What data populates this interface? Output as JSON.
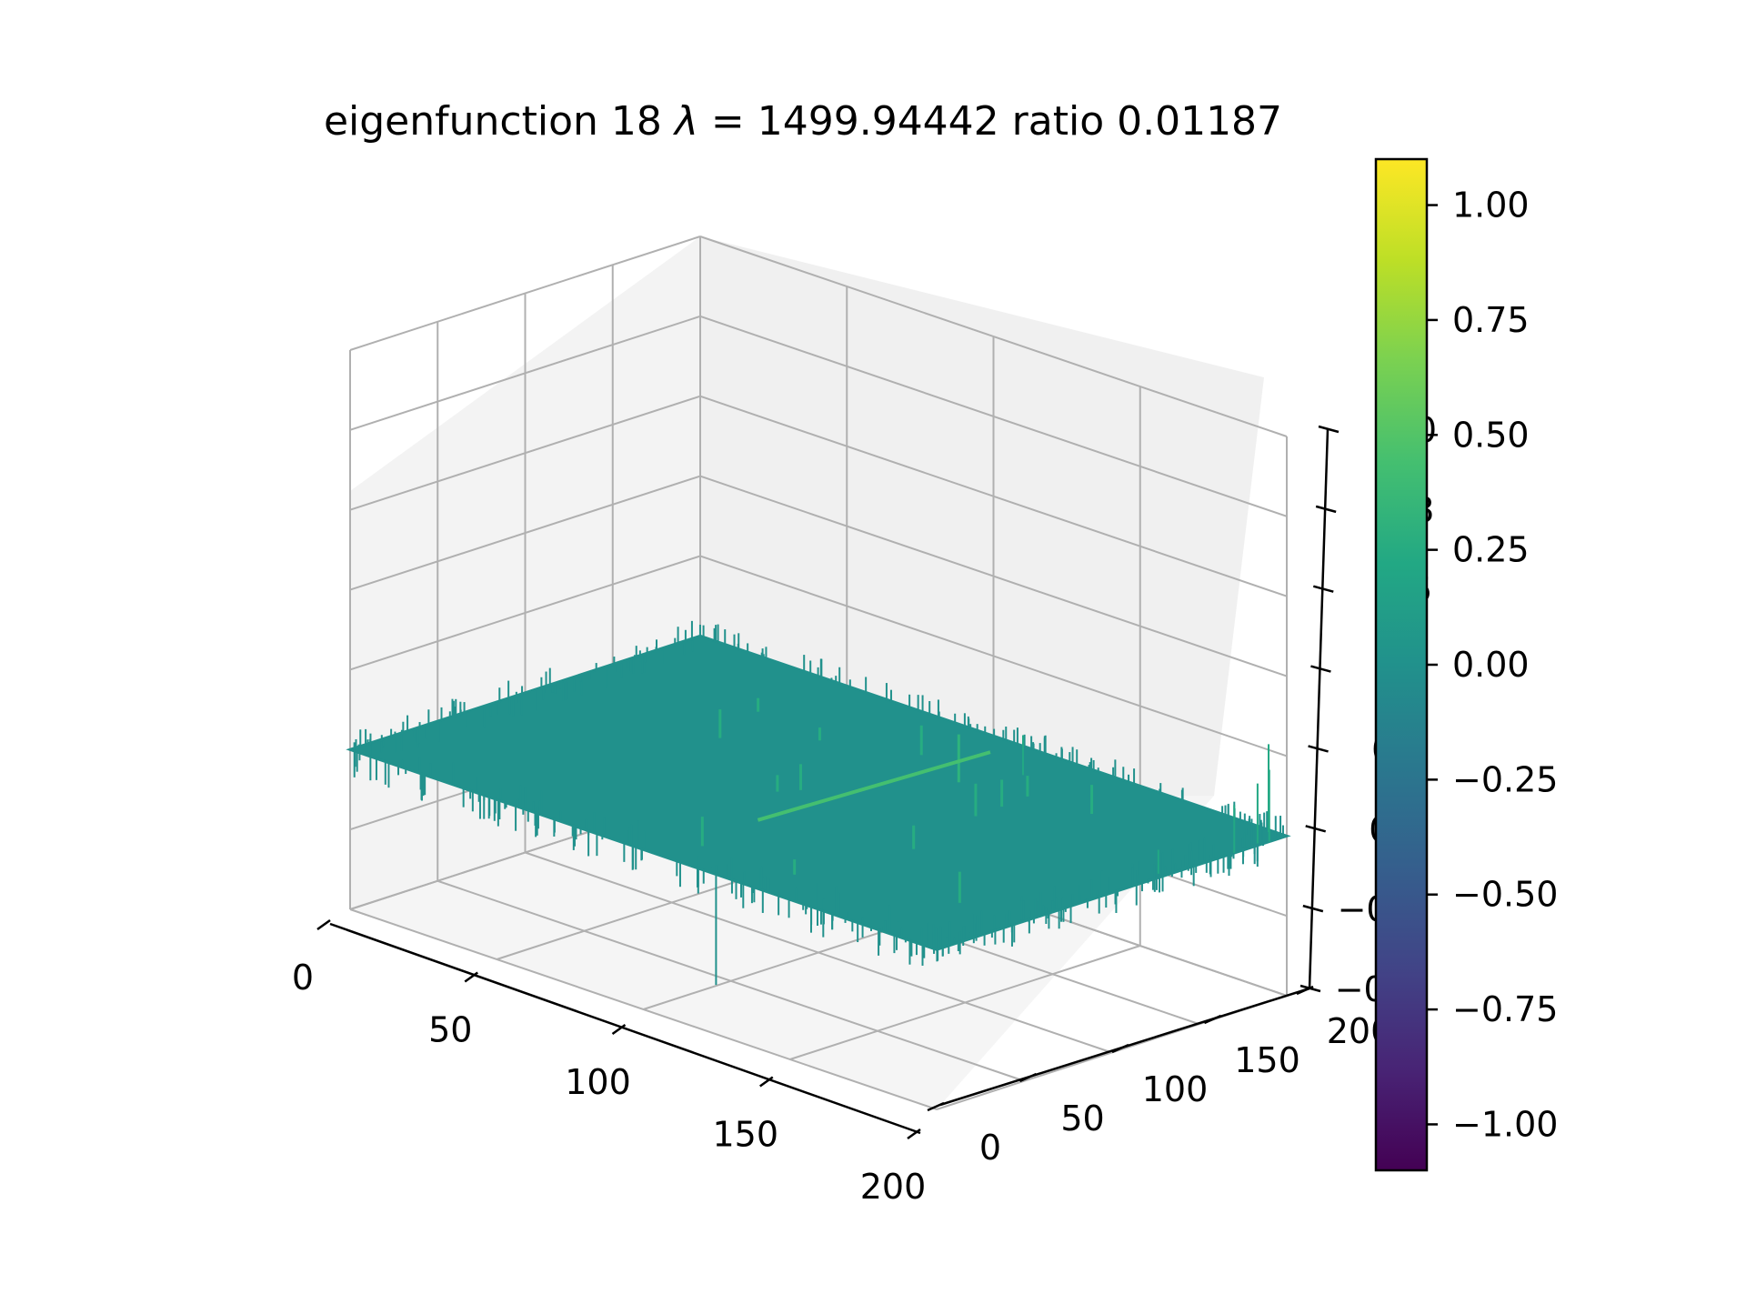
{
  "chart_data": {
    "type": "surface3d",
    "title": "eigenfunction 18  λ = 1499.94442 ratio 0.01187",
    "title_parts": {
      "prefix": "eigenfunction 18  ",
      "lambda_symbol": "λ",
      "equals": " = ",
      "lambda_value": "1499.94442",
      "suffix": " ratio 0.01187"
    },
    "colormap": "viridis",
    "x_axis": {
      "range": [
        0,
        200
      ],
      "ticks": [
        0,
        50,
        100,
        150,
        200
      ],
      "tick_labels": [
        "0",
        "50",
        "100",
        "150",
        "200"
      ]
    },
    "y_axis": {
      "range": [
        0,
        200
      ],
      "ticks": [
        0,
        50,
        100,
        150,
        200
      ],
      "tick_labels": [
        "0",
        "50",
        "100",
        "150",
        "200"
      ]
    },
    "z_axis": {
      "range": [
        -0.4,
        1.0
      ],
      "ticks": [
        -0.4,
        -0.2,
        0.0,
        0.2,
        0.4,
        0.6,
        0.8,
        1.0
      ],
      "tick_labels": [
        "−0.4",
        "−0.2",
        "0.0",
        "0.2",
        "0.4",
        "0.6",
        "0.8",
        "1.0"
      ]
    },
    "colorbar": {
      "range": [
        -1.1,
        1.1
      ],
      "ticks": [
        -1.0,
        -0.75,
        -0.5,
        -0.25,
        0.0,
        0.25,
        0.5,
        0.75,
        1.0
      ],
      "tick_labels": [
        "−1.00",
        "−0.75",
        "−0.50",
        "−0.25",
        "0.00",
        "0.25",
        "0.50",
        "0.75",
        "1.00"
      ]
    },
    "surface": {
      "baseline_value": 0.0,
      "approx_min": -0.35,
      "approx_max": 0.6
    },
    "grid": true
  }
}
